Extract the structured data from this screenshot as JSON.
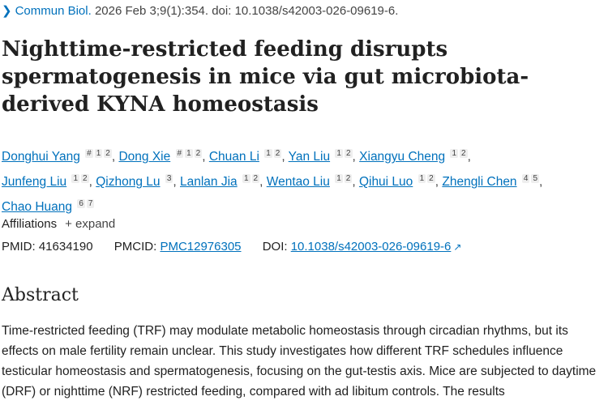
{
  "citation": {
    "journal": "Commun Biol.",
    "rest": " 2026 Feb 3;9(1):354. doi: 10.1038/s42003-026-09619-6."
  },
  "title": "Nighttime-restricted feeding disrupts spermatogenesis in mice via gut microbiota-derived KYNA homeostasis",
  "authors": [
    {
      "name": "Donghui Yang",
      "sups": [
        "#",
        "1",
        "2"
      ]
    },
    {
      "name": "Dong Xie",
      "sups": [
        "#",
        "1",
        "2"
      ]
    },
    {
      "name": "Chuan Li",
      "sups": [
        "1",
        "2"
      ]
    },
    {
      "name": "Yan Liu",
      "sups": [
        "1",
        "2"
      ]
    },
    {
      "name": "Xiangyu Cheng",
      "sups": [
        "1",
        "2"
      ]
    },
    {
      "name": "Junfeng Liu",
      "sups": [
        "1",
        "2"
      ]
    },
    {
      "name": "Qizhong Lu",
      "sups": [
        "3"
      ]
    },
    {
      "name": "Lanlan Jia",
      "sups": [
        "1",
        "2"
      ]
    },
    {
      "name": "Wentao Liu",
      "sups": [
        "1",
        "2"
      ]
    },
    {
      "name": "Qihui Luo",
      "sups": [
        "1",
        "2"
      ]
    },
    {
      "name": "Zhengli Chen",
      "sups": [
        "4",
        "5"
      ]
    },
    {
      "name": "Chao Huang",
      "sups": [
        "6",
        "7"
      ]
    }
  ],
  "affiliations": {
    "label": "Affiliations",
    "expand": "+ expand"
  },
  "ids": {
    "pmid_label": "PMID:",
    "pmid": "41634190",
    "pmcid_label": "PMCID:",
    "pmcid": "PMC12976305",
    "doi_label": "DOI:",
    "doi": "10.1038/s42003-026-09619-6"
  },
  "abstract": {
    "heading": "Abstract",
    "text": "Time-restricted feeding (TRF) may modulate metabolic homeostasis through circadian rhythms, but its effects on male fertility remain unclear. This study investigates how different TRF schedules influence testicular homeostasis and spermatogenesis, focusing on the gut-testis axis. Mice are subjected to daytime (DRF) or nighttime (NRF) restricted feeding, compared with ad libitum controls. The results"
  }
}
